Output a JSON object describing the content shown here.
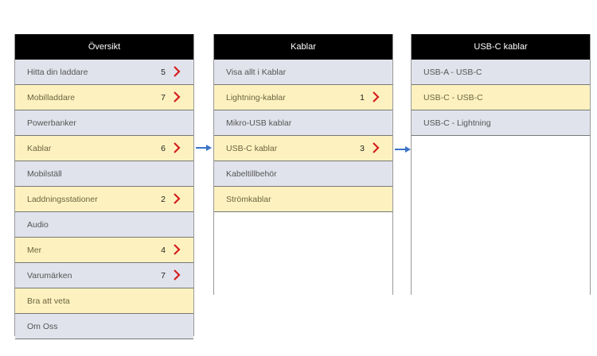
{
  "panels": [
    {
      "title": "Översikt",
      "items": [
        {
          "label": "Hitta din laddare",
          "count": "5"
        },
        {
          "label": "Mobilladdare",
          "count": "7"
        },
        {
          "label": "Powerbanker"
        },
        {
          "label": "Kablar",
          "count": "6"
        },
        {
          "label": "Mobilställ"
        },
        {
          "label": "Laddningsstationer",
          "count": "2"
        },
        {
          "label": "Audio"
        },
        {
          "label": "Mer",
          "count": "4"
        },
        {
          "label": "Varumärken",
          "count": "7"
        },
        {
          "label": "Bra att veta"
        },
        {
          "label": "Om Oss"
        }
      ]
    },
    {
      "title": "Kablar",
      "items": [
        {
          "label": "Visa allt i Kablar"
        },
        {
          "label": "Lightning-kablar",
          "count": "1"
        },
        {
          "label": "Mikro-USB kablar"
        },
        {
          "label": "USB-C kablar",
          "count": "3"
        },
        {
          "label": "Kabeltillbehör"
        },
        {
          "label": "Strömkablar"
        }
      ]
    },
    {
      "title": "USB-C kablar",
      "items": [
        {
          "label": "USB-A - USB-C"
        },
        {
          "label": "USB-C - USB-C"
        },
        {
          "label": "USB-C - Lightning"
        }
      ]
    }
  ],
  "colors": {
    "header": "#000000",
    "row_gray": "#e1e3ec",
    "row_yellow": "#fdf2bf",
    "chevron": "#d42020",
    "arrow": "#3b73c8"
  }
}
